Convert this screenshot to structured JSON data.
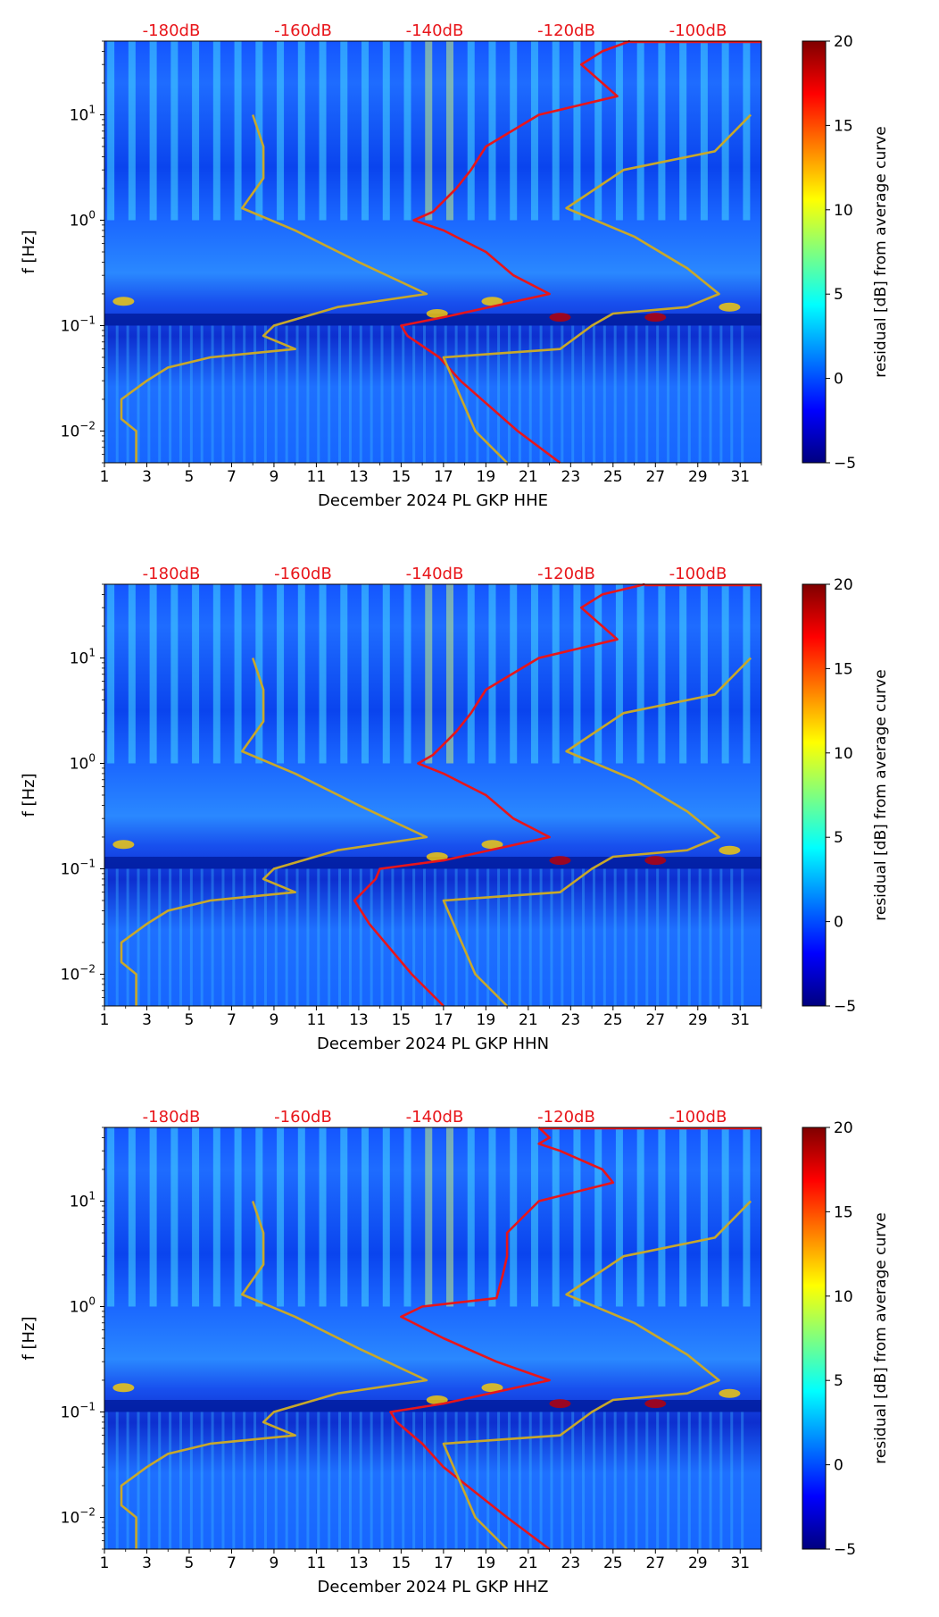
{
  "figure": {
    "colorbar_label": "residual [dB] from average curve",
    "colorbar_ticks": [
      -5,
      0,
      5,
      10,
      15,
      20
    ],
    "colorbar_range": [
      -5,
      20
    ],
    "colormap": [
      "#00007f",
      "#0000ff",
      "#007fff",
      "#00ffff",
      "#7fff7f",
      "#ffff00",
      "#ff7f00",
      "#ff0000",
      "#7f0000"
    ]
  },
  "chart_data": [
    {
      "type": "heatmap",
      "xlabel": "December 2024 PL GKP  HHE",
      "ylabel": "f [Hz]",
      "x_ticks": [
        "1",
        "3",
        "5",
        "7",
        "9",
        "11",
        "13",
        "15",
        "17",
        "19",
        "21",
        "23",
        "25",
        "27",
        "29",
        "31"
      ],
      "xlim": [
        1,
        32
      ],
      "ylim": [
        0.005,
        50
      ],
      "y_ticks": [
        "10^-2",
        "10^-1",
        "10^0",
        "10^1"
      ],
      "top_axis_labels": [
        "-180dB",
        "-160dB",
        "-140dB",
        "-120dB",
        "-100dB"
      ],
      "series": [
        {
          "name": "psd_curve",
          "color": "#e8151a",
          "f": [
            50,
            40,
            30,
            20,
            15,
            10,
            5,
            3,
            2,
            1.2,
            1.0,
            0.8,
            0.5,
            0.3,
            0.2,
            0.12,
            0.1,
            0.08,
            0.05,
            0.03,
            0.01,
            0.005
          ],
          "x": [
            25.8,
            24.5,
            23.5,
            24.5,
            25.2,
            21.5,
            19,
            18.3,
            17.6,
            16.5,
            15.6,
            17,
            19,
            20.3,
            22,
            17,
            15,
            15.3,
            16.8,
            17.8,
            20.5,
            22.5
          ]
        },
        {
          "name": "low_noise_model",
          "color": "#c8a82a",
          "f": [
            10,
            5,
            2.5,
            1.3,
            0.8,
            0.4,
            0.2,
            0.15,
            0.1,
            0.08,
            0.06,
            0.05,
            0.04,
            0.03,
            0.02,
            0.013,
            0.01,
            0.005
          ],
          "x": [
            8,
            8.5,
            8.5,
            7.5,
            10,
            13,
            16.2,
            12,
            9,
            8.5,
            10,
            6,
            4,
            3,
            1.8,
            1.8,
            2.5,
            2.5
          ]
        },
        {
          "name": "high_noise_model",
          "color": "#c8a82a",
          "f": [
            10,
            4.5,
            3,
            1.3,
            0.7,
            0.35,
            0.2,
            0.15,
            0.13,
            0.1,
            0.06,
            0.05,
            0.01,
            0.005
          ],
          "x": [
            31.5,
            29.8,
            25.5,
            22.8,
            26,
            28.5,
            30,
            28.5,
            25,
            24,
            22.5,
            17,
            18.5,
            20
          ]
        }
      ]
    },
    {
      "type": "heatmap",
      "xlabel": "December 2024 PL GKP  HHN",
      "ylabel": "f [Hz]",
      "x_ticks": [
        "1",
        "3",
        "5",
        "7",
        "9",
        "11",
        "13",
        "15",
        "17",
        "19",
        "21",
        "23",
        "25",
        "27",
        "29",
        "31"
      ],
      "xlim": [
        1,
        32
      ],
      "ylim": [
        0.005,
        50
      ],
      "y_ticks": [
        "10^-2",
        "10^-1",
        "10^0",
        "10^1"
      ],
      "top_axis_labels": [
        "-180dB",
        "-160dB",
        "-140dB",
        "-120dB",
        "-100dB"
      ],
      "series": [
        {
          "name": "psd_curve",
          "color": "#e8151a",
          "f": [
            50,
            40,
            30,
            20,
            15,
            10,
            5,
            3,
            2,
            1.2,
            1.0,
            0.8,
            0.5,
            0.3,
            0.2,
            0.12,
            0.1,
            0.08,
            0.05,
            0.03,
            0.01,
            0.005
          ],
          "x": [
            26.5,
            24.5,
            23.5,
            24.5,
            25.2,
            21.5,
            19,
            18.3,
            17.6,
            16.5,
            15.8,
            17,
            19,
            20.3,
            22,
            17,
            14,
            13.8,
            12.8,
            13.5,
            15.5,
            17
          ]
        },
        {
          "name": "low_noise_model",
          "color": "#c8a82a",
          "f": [
            10,
            5,
            2.5,
            1.3,
            0.8,
            0.4,
            0.2,
            0.15,
            0.1,
            0.08,
            0.06,
            0.05,
            0.04,
            0.03,
            0.02,
            0.013,
            0.01,
            0.005
          ],
          "x": [
            8,
            8.5,
            8.5,
            7.5,
            10,
            13,
            16.2,
            12,
            9,
            8.5,
            10,
            6,
            4,
            3,
            1.8,
            1.8,
            2.5,
            2.5
          ]
        },
        {
          "name": "high_noise_model",
          "color": "#c8a82a",
          "f": [
            10,
            4.5,
            3,
            1.3,
            0.7,
            0.35,
            0.2,
            0.15,
            0.13,
            0.1,
            0.06,
            0.05,
            0.01,
            0.005
          ],
          "x": [
            31.5,
            29.8,
            25.5,
            22.8,
            26,
            28.5,
            30,
            28.5,
            25,
            24,
            22.5,
            17,
            18.5,
            20
          ]
        }
      ]
    },
    {
      "type": "heatmap",
      "xlabel": "December 2024 PL GKP  HHZ",
      "ylabel": "f [Hz]",
      "x_ticks": [
        "1",
        "3",
        "5",
        "7",
        "9",
        "11",
        "13",
        "15",
        "17",
        "19",
        "21",
        "23",
        "25",
        "27",
        "29",
        "31"
      ],
      "xlim": [
        1,
        32
      ],
      "ylim": [
        0.005,
        50
      ],
      "y_ticks": [
        "10^-2",
        "10^-1",
        "10^0",
        "10^1"
      ],
      "top_axis_labels": [
        "-180dB",
        "-160dB",
        "-140dB",
        "-120dB",
        "-100dB"
      ],
      "series": [
        {
          "name": "psd_curve",
          "color": "#e8151a",
          "f": [
            50,
            40,
            35,
            30,
            20,
            15,
            10,
            5,
            3,
            2,
            1.2,
            1.0,
            0.8,
            0.5,
            0.3,
            0.2,
            0.12,
            0.1,
            0.08,
            0.05,
            0.03,
            0.01,
            0.005
          ],
          "x": [
            21.5,
            22,
            21.5,
            22.5,
            24.5,
            25,
            21.5,
            20,
            20,
            19.8,
            19.5,
            16,
            15,
            17,
            19.5,
            22,
            17,
            14.5,
            14.8,
            16,
            17,
            20,
            22
          ]
        },
        {
          "name": "low_noise_model",
          "color": "#c8a82a",
          "f": [
            10,
            5,
            2.5,
            1.3,
            0.8,
            0.4,
            0.2,
            0.15,
            0.1,
            0.08,
            0.06,
            0.05,
            0.04,
            0.03,
            0.02,
            0.013,
            0.01,
            0.005
          ],
          "x": [
            8,
            8.5,
            8.5,
            7.5,
            10,
            13,
            16.2,
            12,
            9,
            8.5,
            10,
            6,
            4,
            3,
            1.8,
            1.8,
            2.5,
            2.5
          ]
        },
        {
          "name": "high_noise_model",
          "color": "#c8a82a",
          "f": [
            10,
            4.5,
            3,
            1.3,
            0.7,
            0.35,
            0.2,
            0.15,
            0.13,
            0.1,
            0.06,
            0.05,
            0.01,
            0.005
          ],
          "x": [
            31.5,
            29.8,
            25.5,
            22.8,
            26,
            28.5,
            30,
            28.5,
            25,
            24,
            22.5,
            17,
            18.5,
            20
          ]
        }
      ]
    }
  ]
}
